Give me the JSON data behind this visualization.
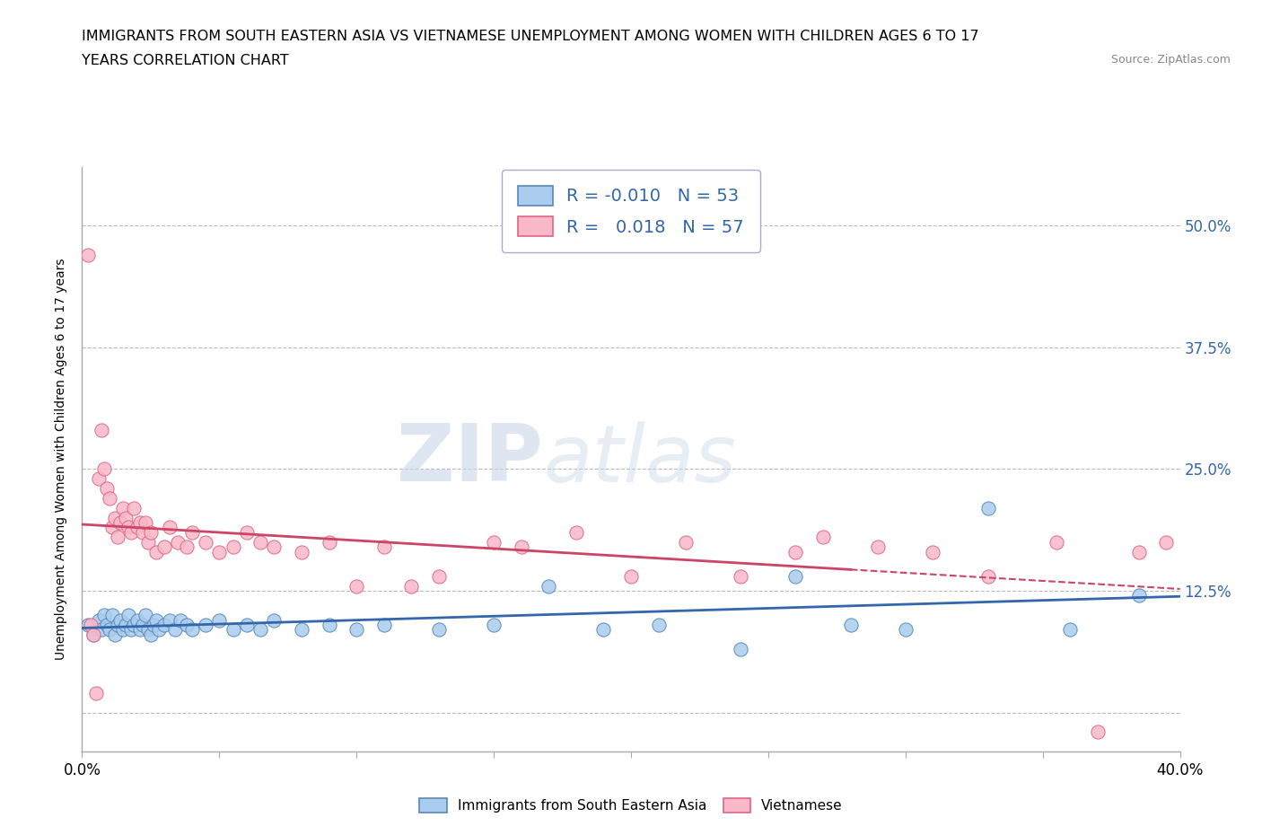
{
  "title_line1": "IMMIGRANTS FROM SOUTH EASTERN ASIA VS VIETNAMESE UNEMPLOYMENT AMONG WOMEN WITH CHILDREN AGES 6 TO 17",
  "title_line2": "YEARS CORRELATION CHART",
  "source_text": "Source: ZipAtlas.com",
  "ylabel": "Unemployment Among Women with Children Ages 6 to 17 years",
  "xlim": [
    0.0,
    0.4
  ],
  "ylim": [
    -0.04,
    0.56
  ],
  "ytick_values": [
    0.0,
    0.125,
    0.25,
    0.375,
    0.5
  ],
  "right_ytick_labels": [
    "",
    "12.5%",
    "25.0%",
    "37.5%",
    "50.0%"
  ],
  "xtick_values": [
    0.0,
    0.05,
    0.1,
    0.15,
    0.2,
    0.25,
    0.3,
    0.35,
    0.4
  ],
  "blue_R": "-0.010",
  "blue_N": "53",
  "pink_R": "0.018",
  "pink_N": "57",
  "blue_color": "#aaccee",
  "pink_color": "#f8b8c8",
  "blue_edge_color": "#5588bb",
  "pink_edge_color": "#dd6688",
  "blue_line_color": "#3366aa",
  "pink_line_color": "#cc4466",
  "watermark_color": "#d0dde8",
  "grid_color": "#bbbbbb",
  "legend_label_blue": "Immigrants from South Eastern Asia",
  "legend_label_pink": "Vietnamese",
  "blue_scatter_x": [
    0.002,
    0.004,
    0.006,
    0.007,
    0.008,
    0.009,
    0.01,
    0.011,
    0.012,
    0.013,
    0.014,
    0.015,
    0.016,
    0.017,
    0.018,
    0.019,
    0.02,
    0.021,
    0.022,
    0.023,
    0.024,
    0.025,
    0.026,
    0.027,
    0.028,
    0.03,
    0.032,
    0.034,
    0.036,
    0.038,
    0.04,
    0.045,
    0.05,
    0.055,
    0.06,
    0.065,
    0.07,
    0.08,
    0.09,
    0.1,
    0.11,
    0.13,
    0.15,
    0.17,
    0.19,
    0.21,
    0.24,
    0.26,
    0.28,
    0.3,
    0.33,
    0.36,
    0.385
  ],
  "blue_scatter_y": [
    0.09,
    0.08,
    0.095,
    0.085,
    0.1,
    0.09,
    0.085,
    0.1,
    0.08,
    0.09,
    0.095,
    0.085,
    0.09,
    0.1,
    0.085,
    0.09,
    0.095,
    0.085,
    0.09,
    0.1,
    0.085,
    0.08,
    0.09,
    0.095,
    0.085,
    0.09,
    0.095,
    0.085,
    0.095,
    0.09,
    0.085,
    0.09,
    0.095,
    0.085,
    0.09,
    0.085,
    0.095,
    0.085,
    0.09,
    0.085,
    0.09,
    0.085,
    0.09,
    0.13,
    0.085,
    0.09,
    0.065,
    0.14,
    0.09,
    0.085,
    0.21,
    0.085,
    0.12
  ],
  "pink_scatter_x": [
    0.002,
    0.003,
    0.004,
    0.005,
    0.006,
    0.007,
    0.008,
    0.009,
    0.01,
    0.011,
    0.012,
    0.013,
    0.014,
    0.015,
    0.016,
    0.017,
    0.018,
    0.019,
    0.02,
    0.021,
    0.022,
    0.023,
    0.024,
    0.025,
    0.027,
    0.03,
    0.032,
    0.035,
    0.038,
    0.04,
    0.045,
    0.05,
    0.055,
    0.06,
    0.065,
    0.07,
    0.08,
    0.09,
    0.1,
    0.11,
    0.12,
    0.13,
    0.15,
    0.16,
    0.18,
    0.2,
    0.22,
    0.24,
    0.26,
    0.27,
    0.29,
    0.31,
    0.33,
    0.355,
    0.37,
    0.385,
    0.395
  ],
  "pink_scatter_y": [
    0.47,
    0.09,
    0.08,
    0.02,
    0.24,
    0.29,
    0.25,
    0.23,
    0.22,
    0.19,
    0.2,
    0.18,
    0.195,
    0.21,
    0.2,
    0.19,
    0.185,
    0.21,
    0.19,
    0.195,
    0.185,
    0.195,
    0.175,
    0.185,
    0.165,
    0.17,
    0.19,
    0.175,
    0.17,
    0.185,
    0.175,
    0.165,
    0.17,
    0.185,
    0.175,
    0.17,
    0.165,
    0.175,
    0.13,
    0.17,
    0.13,
    0.14,
    0.175,
    0.17,
    0.185,
    0.14,
    0.175,
    0.14,
    0.165,
    0.18,
    0.17,
    0.165,
    0.14,
    0.175,
    -0.02,
    0.165,
    0.175
  ],
  "blue_line_x_start": 0.0,
  "blue_line_x_end": 0.4,
  "pink_line_solid_x_end": 0.28,
  "pink_line_dash_x_end": 0.4,
  "background_color": "#ffffff"
}
